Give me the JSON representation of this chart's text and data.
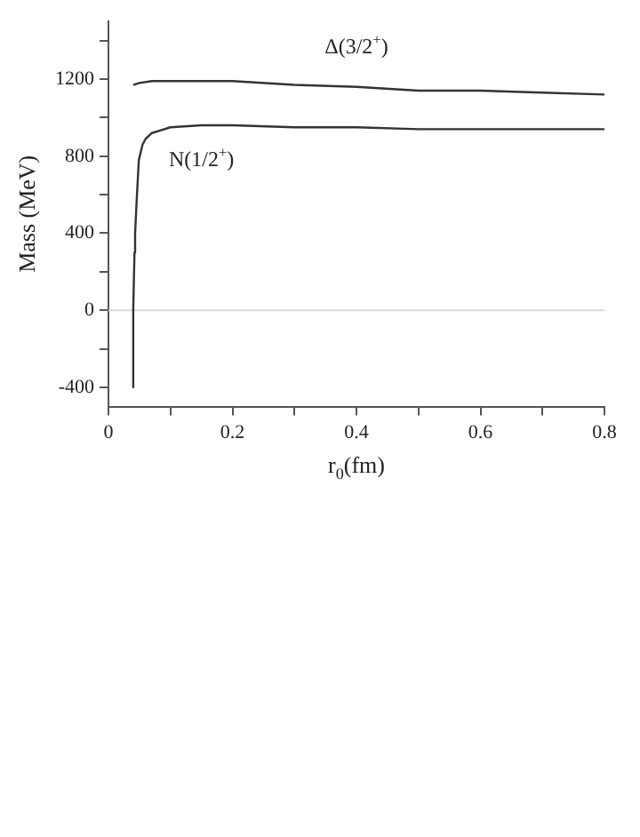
{
  "chart_data": {
    "type": "line",
    "xlabel": "r$_{0}$(fm)",
    "ylabel": "Mass (MeV)",
    "xlim": [
      0,
      0.8
    ],
    "xticks": [
      0,
      {
        "value": 0.1,
        "label": null
      },
      0.2,
      {
        "value": 0.3,
        "label": null
      },
      0.4,
      {
        "value": 0.5,
        "label": null
      },
      0.6,
      {
        "value": 0.7,
        "label": null
      },
      0.8
    ],
    "ylim": [
      -500,
      1500
    ],
    "yticks": [
      {
        "value": -400,
        "label": "-400"
      },
      {
        "value": -200,
        "label": null
      },
      0,
      {
        "value": 200,
        "label": null
      },
      400,
      {
        "value": 600,
        "label": null
      },
      800,
      {
        "value": 1000,
        "label": null
      },
      1200,
      {
        "value": 1400,
        "label": null
      }
    ],
    "grid": false,
    "legend": false,
    "marker": "none",
    "line_style": "solid",
    "ref_lines": [
      {
        "axis": "y",
        "value": 0,
        "color": "#d8d8d8"
      }
    ],
    "series": [
      {
        "name": "Δ(3/2$^{+}$)",
        "color": "#333333",
        "x": [
          0.04,
          0.05,
          0.07,
          0.1,
          0.12,
          0.2,
          0.3,
          0.4,
          0.5,
          0.6,
          0.7,
          0.8
        ],
        "values": [
          1170,
          1180,
          1190,
          1190,
          1190,
          1190,
          1170,
          1160,
          1140,
          1140,
          1130,
          1120
        ]
      },
      {
        "name": "N(1/2$^{+}$)",
        "color": "#333333",
        "x": [
          0.039,
          0.04,
          0.042,
          0.043,
          0.046,
          0.049,
          0.055,
          0.06,
          0.07,
          0.08,
          0.1,
          0.15,
          0.2,
          0.3,
          0.4,
          0.5,
          0.6,
          0.7,
          0.8
        ],
        "values": [
          -400,
          0,
          300,
          400,
          600,
          780,
          860,
          890,
          920,
          930,
          950,
          960,
          960,
          950,
          950,
          940,
          940,
          940,
          940
        ]
      }
    ]
  }
}
